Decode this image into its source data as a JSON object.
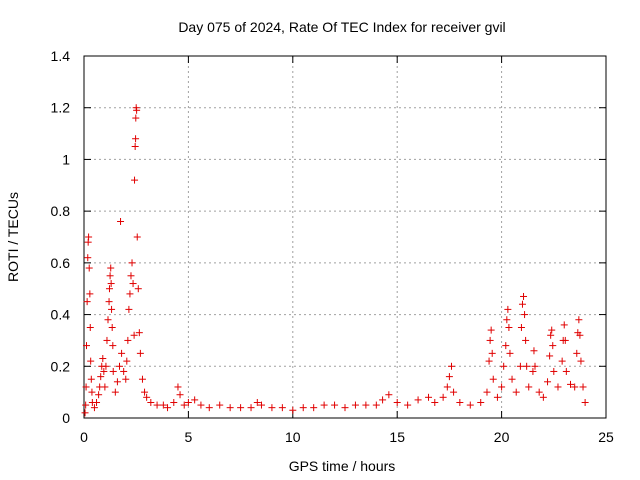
{
  "chart_data": {
    "type": "scatter",
    "title": "Day 075 of 2024, Rate Of TEC Index for receiver gvil",
    "xlabel": "GPS time / hours",
    "ylabel": "ROTI / TECUs",
    "xlim": [
      0,
      25
    ],
    "ylim": [
      0,
      1.4
    ],
    "xticks": [
      "0",
      "5",
      "10",
      "15",
      "20",
      "25"
    ],
    "yticks": [
      "0",
      "0.2",
      "0.4",
      "0.6",
      "0.8",
      "1",
      "1.2",
      "1.4"
    ],
    "grid": true,
    "marker": "+",
    "color": "#e00000",
    "series": [
      {
        "name": "ROTI",
        "points": [
          [
            0.05,
            0.02
          ],
          [
            0.08,
            0.05
          ],
          [
            0.1,
            0.12
          ],
          [
            0.12,
            0.28
          ],
          [
            0.15,
            0.45
          ],
          [
            0.18,
            0.62
          ],
          [
            0.2,
            0.68
          ],
          [
            0.22,
            0.7
          ],
          [
            0.25,
            0.58
          ],
          [
            0.28,
            0.48
          ],
          [
            0.3,
            0.35
          ],
          [
            0.32,
            0.22
          ],
          [
            0.35,
            0.15
          ],
          [
            0.38,
            0.1
          ],
          [
            0.4,
            0.06
          ],
          [
            0.5,
            0.04
          ],
          [
            0.6,
            0.06
          ],
          [
            0.7,
            0.09
          ],
          [
            0.75,
            0.12
          ],
          [
            0.8,
            0.16
          ],
          [
            0.85,
            0.2
          ],
          [
            0.9,
            0.23
          ],
          [
            0.95,
            0.18
          ],
          [
            1.0,
            0.12
          ],
          [
            1.05,
            0.2
          ],
          [
            1.1,
            0.3
          ],
          [
            1.15,
            0.38
          ],
          [
            1.2,
            0.45
          ],
          [
            1.22,
            0.5
          ],
          [
            1.25,
            0.55
          ],
          [
            1.28,
            0.58
          ],
          [
            1.3,
            0.52
          ],
          [
            1.32,
            0.42
          ],
          [
            1.35,
            0.35
          ],
          [
            1.38,
            0.28
          ],
          [
            1.4,
            0.18
          ],
          [
            1.5,
            0.1
          ],
          [
            1.6,
            0.14
          ],
          [
            1.7,
            0.2
          ],
          [
            1.75,
            0.76
          ],
          [
            1.8,
            0.25
          ],
          [
            1.9,
            0.18
          ],
          [
            2.0,
            0.15
          ],
          [
            2.05,
            0.22
          ],
          [
            2.1,
            0.3
          ],
          [
            2.15,
            0.42
          ],
          [
            2.2,
            0.48
          ],
          [
            2.25,
            0.55
          ],
          [
            2.3,
            0.6
          ],
          [
            2.35,
            0.52
          ],
          [
            2.4,
            0.32
          ],
          [
            2.42,
            0.92
          ],
          [
            2.45,
            1.05
          ],
          [
            2.47,
            1.08
          ],
          [
            2.48,
            1.16
          ],
          [
            2.5,
            1.2
          ],
          [
            2.52,
            1.19
          ],
          [
            2.55,
            0.7
          ],
          [
            2.6,
            0.5
          ],
          [
            2.65,
            0.33
          ],
          [
            2.7,
            0.25
          ],
          [
            2.8,
            0.15
          ],
          [
            2.9,
            0.1
          ],
          [
            3.0,
            0.08
          ],
          [
            3.2,
            0.06
          ],
          [
            3.5,
            0.05
          ],
          [
            3.8,
            0.05
          ],
          [
            4.0,
            0.04
          ],
          [
            4.3,
            0.06
          ],
          [
            4.5,
            0.12
          ],
          [
            4.6,
            0.09
          ],
          [
            4.8,
            0.05
          ],
          [
            5.0,
            0.06
          ],
          [
            5.3,
            0.07
          ],
          [
            5.6,
            0.05
          ],
          [
            6.0,
            0.04
          ],
          [
            6.5,
            0.05
          ],
          [
            7.0,
            0.04
          ],
          [
            7.5,
            0.04
          ],
          [
            8.0,
            0.04
          ],
          [
            8.3,
            0.06
          ],
          [
            8.5,
            0.05
          ],
          [
            9.0,
            0.04
          ],
          [
            9.5,
            0.04
          ],
          [
            10.0,
            0.03
          ],
          [
            10.5,
            0.04
          ],
          [
            11.0,
            0.04
          ],
          [
            11.5,
            0.05
          ],
          [
            12.0,
            0.05
          ],
          [
            12.5,
            0.04
          ],
          [
            13.0,
            0.05
          ],
          [
            13.5,
            0.05
          ],
          [
            14.0,
            0.05
          ],
          [
            14.3,
            0.07
          ],
          [
            14.6,
            0.09
          ],
          [
            15.0,
            0.06
          ],
          [
            15.5,
            0.05
          ],
          [
            16.0,
            0.07
          ],
          [
            16.5,
            0.08
          ],
          [
            16.8,
            0.06
          ],
          [
            17.2,
            0.08
          ],
          [
            17.4,
            0.12
          ],
          [
            17.5,
            0.16
          ],
          [
            17.6,
            0.2
          ],
          [
            17.7,
            0.1
          ],
          [
            18.0,
            0.06
          ],
          [
            18.5,
            0.05
          ],
          [
            19.0,
            0.06
          ],
          [
            19.3,
            0.1
          ],
          [
            19.4,
            0.22
          ],
          [
            19.45,
            0.3
          ],
          [
            19.5,
            0.34
          ],
          [
            19.55,
            0.25
          ],
          [
            19.6,
            0.15
          ],
          [
            19.8,
            0.08
          ],
          [
            20.0,
            0.12
          ],
          [
            20.1,
            0.2
          ],
          [
            20.2,
            0.28
          ],
          [
            20.25,
            0.38
          ],
          [
            20.3,
            0.42
          ],
          [
            20.35,
            0.35
          ],
          [
            20.4,
            0.25
          ],
          [
            20.5,
            0.15
          ],
          [
            20.7,
            0.1
          ],
          [
            20.9,
            0.2
          ],
          [
            20.95,
            0.35
          ],
          [
            21.0,
            0.44
          ],
          [
            21.05,
            0.47
          ],
          [
            21.1,
            0.4
          ],
          [
            21.15,
            0.3
          ],
          [
            21.2,
            0.2
          ],
          [
            21.3,
            0.12
          ],
          [
            21.5,
            0.18
          ],
          [
            21.55,
            0.26
          ],
          [
            21.6,
            0.2
          ],
          [
            21.8,
            0.1
          ],
          [
            22.0,
            0.08
          ],
          [
            22.2,
            0.14
          ],
          [
            22.3,
            0.24
          ],
          [
            22.35,
            0.32
          ],
          [
            22.4,
            0.34
          ],
          [
            22.45,
            0.28
          ],
          [
            22.5,
            0.18
          ],
          [
            22.7,
            0.12
          ],
          [
            22.9,
            0.22
          ],
          [
            22.95,
            0.3
          ],
          [
            23.0,
            0.36
          ],
          [
            23.05,
            0.3
          ],
          [
            23.1,
            0.18
          ],
          [
            23.3,
            0.13
          ],
          [
            23.5,
            0.12
          ],
          [
            23.6,
            0.25
          ],
          [
            23.65,
            0.33
          ],
          [
            23.7,
            0.38
          ],
          [
            23.75,
            0.32
          ],
          [
            23.8,
            0.22
          ],
          [
            23.9,
            0.12
          ],
          [
            24.0,
            0.06
          ]
        ]
      }
    ]
  }
}
